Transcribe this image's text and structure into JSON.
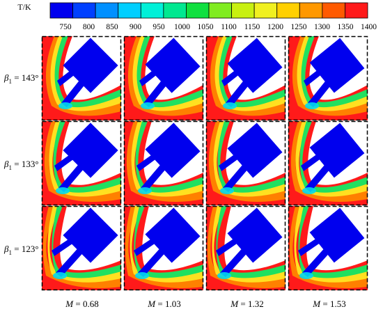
{
  "colorbar": {
    "label": "T/K",
    "ticks": [
      "750",
      "800",
      "850",
      "900",
      "950",
      "1000",
      "1050",
      "1100",
      "1150",
      "1200",
      "1250",
      "1300",
      "1350",
      "1400"
    ],
    "colors": [
      "#0000ee",
      "#0040ff",
      "#0090ff",
      "#00cfff",
      "#00f0d8",
      "#00e890",
      "#10e040",
      "#80ec20",
      "#c8f010",
      "#f0f020",
      "#ffd000",
      "#ff9800",
      "#ff5a00",
      "#ff1a1a"
    ]
  },
  "rows": [
    {
      "symbol": "β",
      "sub": "1",
      "value": " = 143°"
    },
    {
      "symbol": "β",
      "sub": "1",
      "value": " = 133°"
    },
    {
      "symbol": "β",
      "sub": "1",
      "value": " = 123°"
    }
  ],
  "columns": [
    {
      "symbol": "M",
      "value": " = 0.68"
    },
    {
      "symbol": "M",
      "value": " = 1.03"
    },
    {
      "symbol": "M",
      "value": " = 1.32"
    },
    {
      "symbol": "M",
      "value": " = 1.53"
    }
  ],
  "colors": {
    "hot": "#ff1a1a",
    "orange": "#ff8000",
    "yellow": "#ffe020",
    "green": "#20e060",
    "cyan": "#00d8f0",
    "cold": "#0000ee",
    "background": "#ffffff"
  }
}
